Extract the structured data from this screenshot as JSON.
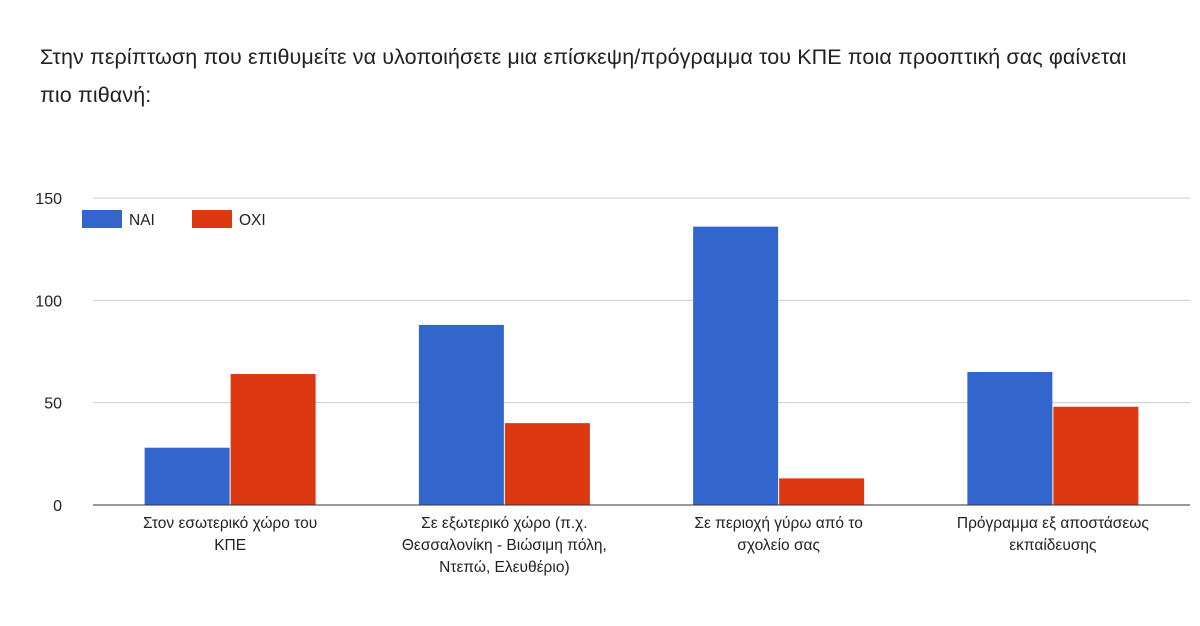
{
  "chart_data": {
    "type": "bar",
    "title": "Στην περίπτωση που επιθυμείτε να υλοποιήσετε μια επίσκεψη/πρόγραμμα του ΚΠΕ ποια προοπτική σας φαίνεται πιο πιθανή:",
    "categories": [
      [
        "Στον εσωτερικό χώρο του",
        "ΚΠΕ"
      ],
      [
        "Σε εξωτερικό χώρο (π.χ.",
        "Θεσσαλονίκη - Βιώσιμη πόλη,",
        "Ντεπώ, Ελευθέριο)"
      ],
      [
        "Σε περιοχή γύρω από το",
        "σχολείο σας"
      ],
      [
        "Πρόγραμμα εξ αποστάσεως",
        "εκπαίδευσης"
      ]
    ],
    "series": [
      {
        "name": "ΝΑΙ",
        "color": "#3366cc",
        "values": [
          28,
          88,
          136,
          65
        ]
      },
      {
        "name": "ΟΧΙ",
        "color": "#dc3912",
        "values": [
          64,
          40,
          13,
          48
        ]
      }
    ],
    "yticks": [
      "0",
      "50",
      "100",
      "150"
    ],
    "ylim": [
      0,
      150
    ],
    "grid": true,
    "legend_position": "top-left"
  }
}
